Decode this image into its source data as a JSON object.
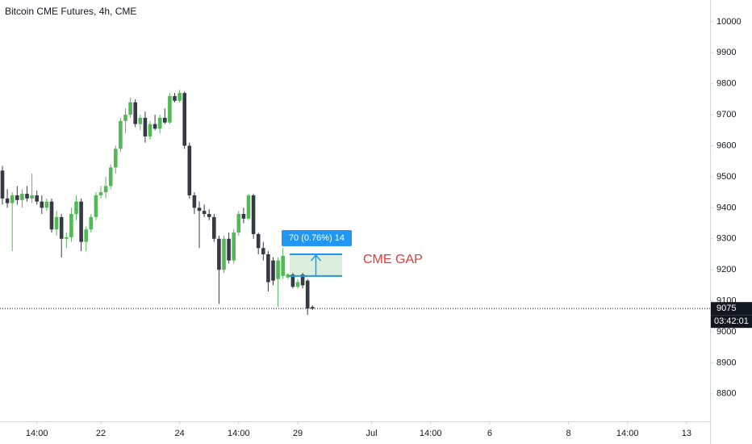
{
  "chart_data": {
    "type": "candlestick",
    "title": "Bitcoin CME Futures, 4h, CME",
    "categories": [
      null,
      null,
      null,
      null,
      null,
      null,
      null,
      "14:00",
      null,
      null,
      null,
      null,
      null,
      null,
      null,
      null,
      null,
      null,
      null,
      null,
      "22",
      null,
      null,
      null,
      null,
      null,
      null,
      null,
      null,
      null,
      null,
      null,
      null,
      null,
      null,
      null,
      "24",
      null,
      null,
      null,
      null,
      null,
      null,
      null,
      null,
      null,
      null,
      null,
      "14:00",
      null,
      null,
      null,
      null,
      null,
      null,
      null,
      null,
      null,
      null,
      null,
      "29",
      null,
      null,
      null,
      null,
      null,
      null,
      null,
      null,
      null,
      null,
      null,
      null,
      null,
      null,
      "Jul",
      null,
      null,
      null,
      null,
      null,
      null,
      null,
      null,
      null,
      null,
      null,
      "14:00",
      null,
      null,
      null,
      null,
      null,
      null,
      null,
      null,
      null,
      null,
      null,
      "6",
      null,
      null,
      null,
      null,
      null,
      null,
      null,
      null,
      null,
      null,
      null,
      null,
      null,
      null,
      null,
      "8",
      null,
      null,
      null,
      null,
      null,
      null,
      null,
      null,
      null,
      null,
      null,
      "14:00",
      null,
      null,
      null,
      null,
      null,
      null,
      null,
      null,
      null,
      null,
      null,
      "13",
      null,
      null,
      null
    ],
    "open": [
      9520,
      9430,
      9415,
      9440,
      9425,
      9445,
      9430,
      9440,
      9420,
      9400,
      9420,
      9330,
      9370,
      9300,
      9305,
      9380,
      9420,
      9290,
      9330,
      9370,
      9440,
      9450,
      9470,
      9530,
      9590,
      9680,
      9700,
      9740,
      9670,
      9690,
      9630,
      9670,
      9655,
      9690,
      9675,
      9760,
      9745,
      9770,
      9600,
      9440,
      9400,
      9390,
      9380,
      9370,
      9300,
      9200,
      9300,
      9230,
      9320,
      9380,
      9365,
      9440,
      9315,
      9270,
      9250,
      9230,
      9170,
      9180,
      9175,
      9185,
      9145,
      9185,
      9165,
      9080,
      null,
      null,
      null,
      null,
      null,
      null,
      null,
      null,
      null,
      null,
      null,
      null,
      null,
      null,
      null,
      null,
      null,
      null,
      null,
      null,
      null,
      null,
      null,
      null,
      null,
      null,
      null,
      null,
      null,
      null,
      null,
      null,
      null,
      null,
      null,
      null,
      null,
      null,
      null,
      null,
      null,
      null,
      null,
      null,
      null,
      null,
      null,
      null,
      null,
      null,
      null,
      null,
      null,
      null,
      null,
      null,
      null,
      null,
      null,
      null,
      null,
      null,
      null,
      null,
      null,
      null,
      null,
      null,
      null,
      null,
      null,
      null,
      null,
      null,
      null,
      null,
      null,
      null,
      null
    ],
    "high": [
      9535,
      9460,
      9450,
      9470,
      9460,
      9470,
      9510,
      9455,
      9440,
      9430,
      9430,
      9390,
      9380,
      9320,
      9400,
      9440,
      9430,
      9340,
      9380,
      9450,
      9470,
      9500,
      9540,
      9600,
      9690,
      9720,
      9755,
      9750,
      9700,
      9710,
      9680,
      9700,
      9700,
      9720,
      9770,
      9770,
      9780,
      9775,
      9610,
      9450,
      9420,
      9410,
      9395,
      9380,
      9310,
      9310,
      9320,
      9330,
      9390,
      9400,
      9445,
      9445,
      9320,
      9290,
      9260,
      9240,
      9240,
      9270,
      9190,
      9190,
      9170,
      9190,
      9170,
      9085,
      null,
      null,
      null,
      null,
      null,
      null,
      null,
      null,
      null,
      null,
      null,
      null,
      null,
      null,
      null,
      null,
      null,
      null,
      null,
      null,
      null,
      null,
      null,
      null,
      null,
      null,
      null,
      null,
      null,
      null,
      null,
      null,
      null,
      null,
      null,
      null,
      null,
      null,
      null,
      null,
      null,
      null,
      null,
      null,
      null,
      null,
      null,
      null,
      null,
      null,
      null,
      null,
      null,
      null,
      null,
      null,
      null,
      null,
      null,
      null,
      null,
      null,
      null,
      null,
      null,
      null,
      null,
      null,
      null,
      null,
      null,
      null,
      null,
      null,
      null,
      null,
      null,
      null,
      null
    ],
    "low": [
      9410,
      9400,
      9260,
      9410,
      9400,
      9420,
      9415,
      9410,
      9380,
      9390,
      9320,
      9310,
      9240,
      9270,
      9290,
      9360,
      9260,
      9260,
      9320,
      9360,
      9430,
      9430,
      9460,
      9510,
      9580,
      9640,
      9690,
      9660,
      9650,
      9610,
      9620,
      9650,
      9640,
      9670,
      9670,
      9740,
      9740,
      9590,
      9430,
      9380,
      9270,
      9370,
      9360,
      9290,
      9090,
      9190,
      9220,
      9220,
      9310,
      9350,
      9360,
      9300,
      9250,
      9230,
      9130,
      9150,
      9080,
      9170,
      9170,
      9140,
      9140,
      9140,
      9055,
      9070,
      null,
      null,
      null,
      null,
      null,
      null,
      null,
      null,
      null,
      null,
      null,
      null,
      null,
      null,
      null,
      null,
      null,
      null,
      null,
      null,
      null,
      null,
      null,
      null,
      null,
      null,
      null,
      null,
      null,
      null,
      null,
      null,
      null,
      null,
      null,
      null,
      null,
      null,
      null,
      null,
      null,
      null,
      null,
      null,
      null,
      null,
      null,
      null,
      null,
      null,
      null,
      null,
      null,
      null,
      null,
      null,
      null,
      null,
      null,
      null,
      null,
      null,
      null,
      null,
      null,
      null,
      null,
      null,
      null,
      null,
      null,
      null,
      null,
      null,
      null,
      null,
      null,
      null,
      null
    ],
    "close": [
      9430,
      9415,
      9440,
      9425,
      9445,
      9430,
      9440,
      9420,
      9400,
      9420,
      9330,
      9370,
      9300,
      9305,
      9380,
      9420,
      9290,
      9330,
      9370,
      9440,
      9450,
      9470,
      9530,
      9590,
      9680,
      9700,
      9740,
      9670,
      9690,
      9630,
      9670,
      9655,
      9690,
      9675,
      9760,
      9745,
      9770,
      9600,
      9440,
      9400,
      9390,
      9380,
      9370,
      9300,
      9200,
      9300,
      9230,
      9320,
      9380,
      9365,
      9440,
      9315,
      9270,
      9250,
      9160,
      9165,
      9230,
      9245,
      9185,
      9145,
      9160,
      9150,
      9075,
      9075,
      null,
      null,
      null,
      null,
      null,
      null,
      null,
      null,
      null,
      null,
      null,
      null,
      null,
      null,
      null,
      null,
      null,
      null,
      null,
      null,
      null,
      null,
      null,
      null,
      null,
      null,
      null,
      null,
      null,
      null,
      null,
      null,
      null,
      null,
      null,
      null,
      null,
      null,
      null,
      null,
      null,
      null,
      null,
      null,
      null,
      null,
      null,
      null,
      null,
      null,
      null,
      null,
      null,
      null,
      null,
      null,
      null,
      null,
      null,
      null,
      null,
      null,
      null,
      null,
      null,
      null,
      null,
      null,
      null,
      null,
      null,
      null,
      null,
      null,
      null,
      null,
      null,
      null,
      null
    ],
    "up_color": "#53b957",
    "down_color": "#363a45",
    "ylim": [
      8711,
      10070
    ],
    "yticks": [
      8800,
      8900,
      9000,
      9100,
      9200,
      9300,
      9400,
      9500,
      9600,
      9700,
      9800,
      9900,
      10000
    ],
    "last_price": 9075,
    "countdown": "03:42:01",
    "measure": {
      "label": "70 (0.76%) 14",
      "from": 9180,
      "to": 9250,
      "color": "#2196f3"
    },
    "annotation": {
      "text": "CME GAP",
      "color": "#e53935"
    }
  }
}
